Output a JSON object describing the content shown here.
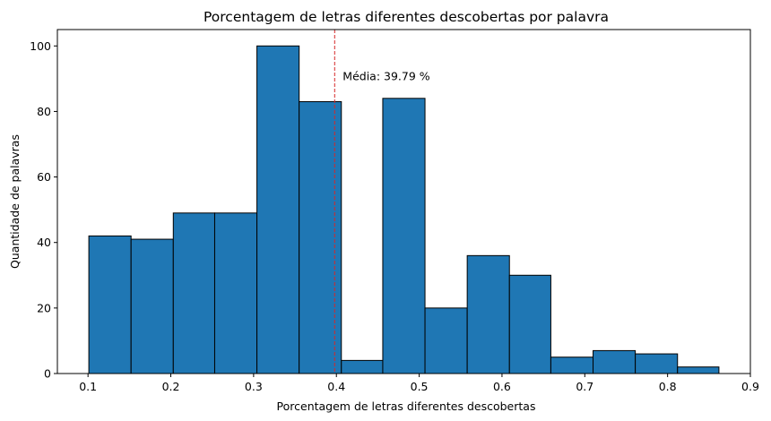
{
  "chart_data": {
    "type": "bar",
    "title": "Porcentagem de letras diferentes descobertas por palavra",
    "xlabel": "Porcentagem de letras diferentes descobertas",
    "ylabel": "Quantidade de palavras",
    "bins": [
      {
        "x0": 0.101,
        "x1": 0.152,
        "count": 42
      },
      {
        "x0": 0.152,
        "x1": 0.203,
        "count": 41
      },
      {
        "x0": 0.203,
        "x1": 0.253,
        "count": 49
      },
      {
        "x0": 0.253,
        "x1": 0.304,
        "count": 49
      },
      {
        "x0": 0.304,
        "x1": 0.355,
        "count": 100
      },
      {
        "x0": 0.355,
        "x1": 0.406,
        "count": 83
      },
      {
        "x0": 0.406,
        "x1": 0.456,
        "count": 4
      },
      {
        "x0": 0.456,
        "x1": 0.507,
        "count": 84
      },
      {
        "x0": 0.507,
        "x1": 0.558,
        "count": 20
      },
      {
        "x0": 0.558,
        "x1": 0.609,
        "count": 36
      },
      {
        "x0": 0.609,
        "x1": 0.659,
        "count": 30
      },
      {
        "x0": 0.659,
        "x1": 0.71,
        "count": 5
      },
      {
        "x0": 0.71,
        "x1": 0.761,
        "count": 7
      },
      {
        "x0": 0.761,
        "x1": 0.812,
        "count": 6
      },
      {
        "x0": 0.812,
        "x1": 0.862,
        "count": 2
      }
    ],
    "mean": 0.3979,
    "mean_label": "Média: 39.79 %",
    "xlim": [
      0.063,
      0.9
    ],
    "ylim": [
      0,
      105
    ],
    "xticks": [
      0.1,
      0.2,
      0.3,
      0.4,
      0.5,
      0.6,
      0.7,
      0.8,
      0.9
    ],
    "xtick_labels": [
      "0.1",
      "0.2",
      "0.3",
      "0.4",
      "0.5",
      "0.6",
      "0.7",
      "0.8",
      "0.9"
    ],
    "yticks": [
      0,
      20,
      40,
      60,
      80,
      100
    ],
    "ytick_labels": [
      "0",
      "20",
      "40",
      "60",
      "80",
      "100"
    ],
    "grid": false,
    "colors": {
      "bar": "#1f77b4",
      "edge": "#000000",
      "mean_line": "#d62728"
    }
  }
}
